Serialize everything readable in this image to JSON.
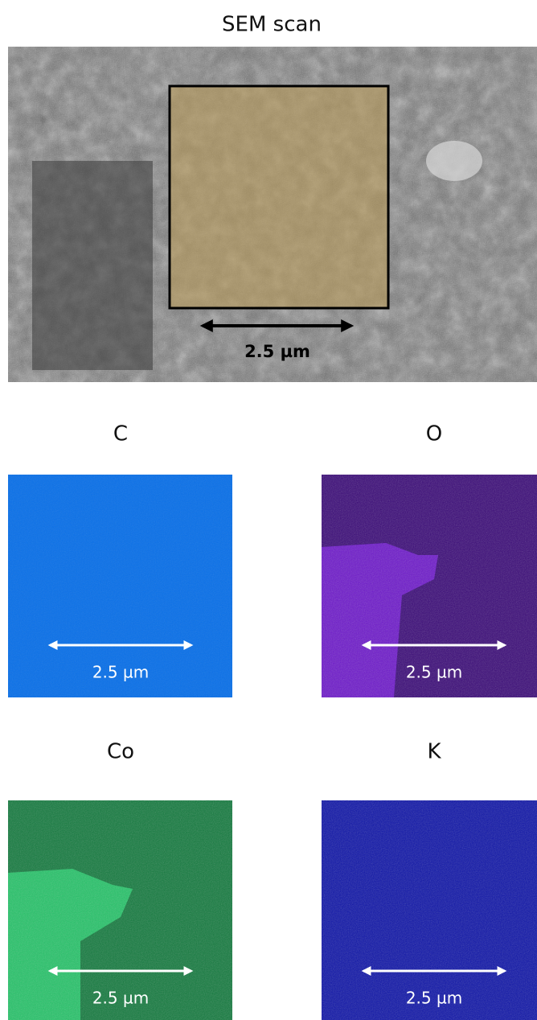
{
  "sem": {
    "title": "SEM scan",
    "scale_label": "2.5 µm"
  },
  "maps": [
    {
      "label": "C",
      "scale_label": "2.5 µm"
    },
    {
      "label": "O",
      "scale_label": "2.5 µm"
    },
    {
      "label": "Co",
      "scale_label": "2.5 µm"
    },
    {
      "label": "K",
      "scale_label": "2.5 µm"
    }
  ]
}
